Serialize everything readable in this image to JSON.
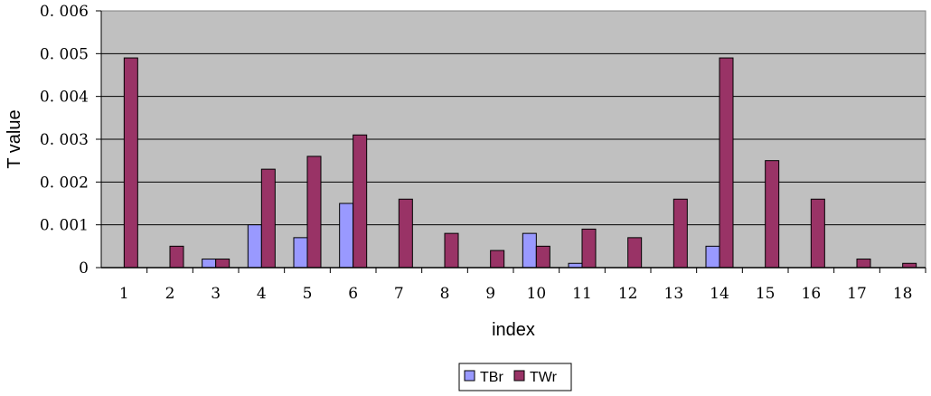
{
  "chart_data": {
    "type": "bar",
    "title": "",
    "xlabel": "index",
    "ylabel": "T value",
    "categories": [
      "1",
      "2",
      "3",
      "4",
      "5",
      "6",
      "7",
      "8",
      "9",
      "10",
      "11",
      "12",
      "13",
      "14",
      "15",
      "16",
      "17",
      "18"
    ],
    "series": [
      {
        "name": "TBr",
        "color": "#9999ff",
        "values": [
          0,
          0,
          0.0002,
          0.001,
          0.0007,
          0.0015,
          0,
          0,
          0,
          0.0008,
          0.0001,
          0,
          0,
          0.0005,
          0,
          0,
          0,
          0
        ]
      },
      {
        "name": "TWr",
        "color": "#993366",
        "values": [
          0.0049,
          0.0005,
          0.0002,
          0.0023,
          0.0026,
          0.0031,
          0.0016,
          0.0008,
          0.0004,
          0.0005,
          0.0009,
          0.0007,
          0.0016,
          0.0049,
          0.0025,
          0.0016,
          0.0002,
          0.0001
        ]
      }
    ],
    "ylim": [
      0,
      0.006
    ],
    "y_ticks": [
      0,
      0.001,
      0.002,
      0.003,
      0.004,
      0.005,
      0.006
    ],
    "y_tick_labels": [
      "0",
      "0. 001",
      "0. 002",
      "0. 003",
      "0. 004",
      "0. 005",
      "0. 006"
    ],
    "grid": true,
    "plot_background": "#c0c0c0",
    "legend_position": "bottom"
  }
}
